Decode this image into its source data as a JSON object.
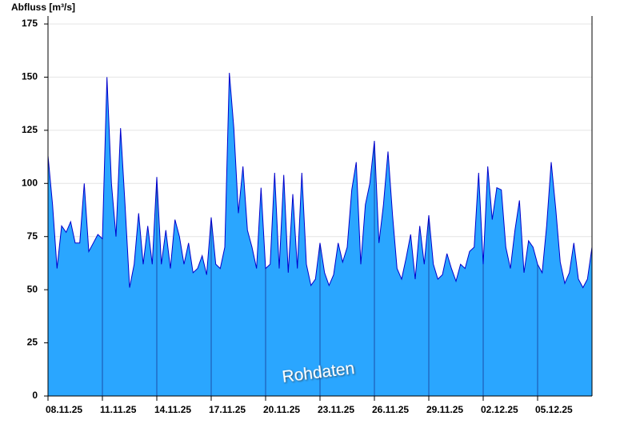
{
  "chart_data": {
    "type": "area",
    "title": "Abfluss [m³/s]",
    "watermark": "Rohdaten",
    "x": [
      0,
      0.25,
      0.5,
      0.75,
      1,
      1.25,
      1.5,
      1.75,
      2,
      2.25,
      2.5,
      2.75,
      3,
      3.25,
      3.5,
      3.75,
      4,
      4.25,
      4.5,
      4.75,
      5,
      5.25,
      5.5,
      5.75,
      6,
      6.25,
      6.5,
      6.75,
      7,
      7.25,
      7.5,
      7.75,
      8,
      8.25,
      8.5,
      8.75,
      9,
      9.25,
      9.5,
      9.75,
      10,
      10.25,
      10.5,
      10.75,
      11,
      11.25,
      11.5,
      11.75,
      12,
      12.25,
      12.5,
      12.75,
      13,
      13.25,
      13.5,
      13.75,
      14,
      14.25,
      14.5,
      14.75,
      15,
      15.25,
      15.5,
      15.75,
      16,
      16.25,
      16.5,
      16.75,
      17,
      17.25,
      17.5,
      17.75,
      18,
      18.25,
      18.5,
      18.75,
      19,
      19.25,
      19.5,
      19.75,
      20,
      20.25,
      20.5,
      20.75,
      21,
      21.25,
      21.5,
      21.75,
      22,
      22.25,
      22.5,
      22.75,
      23,
      23.25,
      23.5,
      23.75,
      24,
      24.25,
      24.5,
      24.75,
      25,
      25.25,
      25.5,
      25.75,
      26,
      26.25,
      26.5,
      26.75,
      27,
      27.25,
      27.5,
      27.75,
      28,
      28.25,
      28.5,
      28.75,
      29,
      29.25,
      29.5,
      29.75,
      30
    ],
    "values": [
      113,
      90,
      60,
      80,
      77,
      82,
      72,
      72,
      100,
      68,
      72,
      76,
      74,
      150,
      100,
      75,
      126,
      90,
      51,
      62,
      86,
      62,
      80,
      62,
      103,
      62,
      78,
      60,
      83,
      75,
      62,
      72,
      58,
      60,
      66,
      57,
      84,
      62,
      60,
      70,
      152,
      126,
      86,
      108,
      78,
      70,
      60,
      98,
      60,
      62,
      105,
      60,
      104,
      58,
      95,
      60,
      105,
      62,
      52,
      55,
      72,
      58,
      52,
      57,
      72,
      63,
      70,
      97,
      110,
      62,
      90,
      100,
      120,
      72,
      90,
      115,
      85,
      60,
      55,
      65,
      76,
      55,
      80,
      62,
      85,
      62,
      55,
      57,
      67,
      60,
      54,
      62,
      60,
      68,
      70,
      105,
      62,
      108,
      83,
      98,
      97,
      70,
      60,
      78,
      92,
      58,
      73,
      70,
      62,
      58,
      80,
      110,
      88,
      63,
      53,
      58,
      72,
      55,
      51,
      55,
      70
    ],
    "color": "#2aa6ff",
    "line_color": "#0000cc",
    "xlim": [
      0,
      30
    ],
    "xticks": [
      {
        "value": 0,
        "label": "08.11.25"
      },
      {
        "value": 3,
        "label": "11.11.25"
      },
      {
        "value": 6,
        "label": "14.11.25"
      },
      {
        "value": 9,
        "label": "17.11.25"
      },
      {
        "value": 12,
        "label": "20.11.25"
      },
      {
        "value": 15,
        "label": "23.11.25"
      },
      {
        "value": 18,
        "label": "26.11.25"
      },
      {
        "value": 21,
        "label": "29.11.25"
      },
      {
        "value": 24,
        "label": "02.12.25"
      },
      {
        "value": 27,
        "label": "05.12.25"
      }
    ],
    "ylim": [
      0,
      175
    ],
    "yticks": [
      0,
      25,
      50,
      75,
      100,
      125,
      150,
      175
    ],
    "grid": true
  }
}
